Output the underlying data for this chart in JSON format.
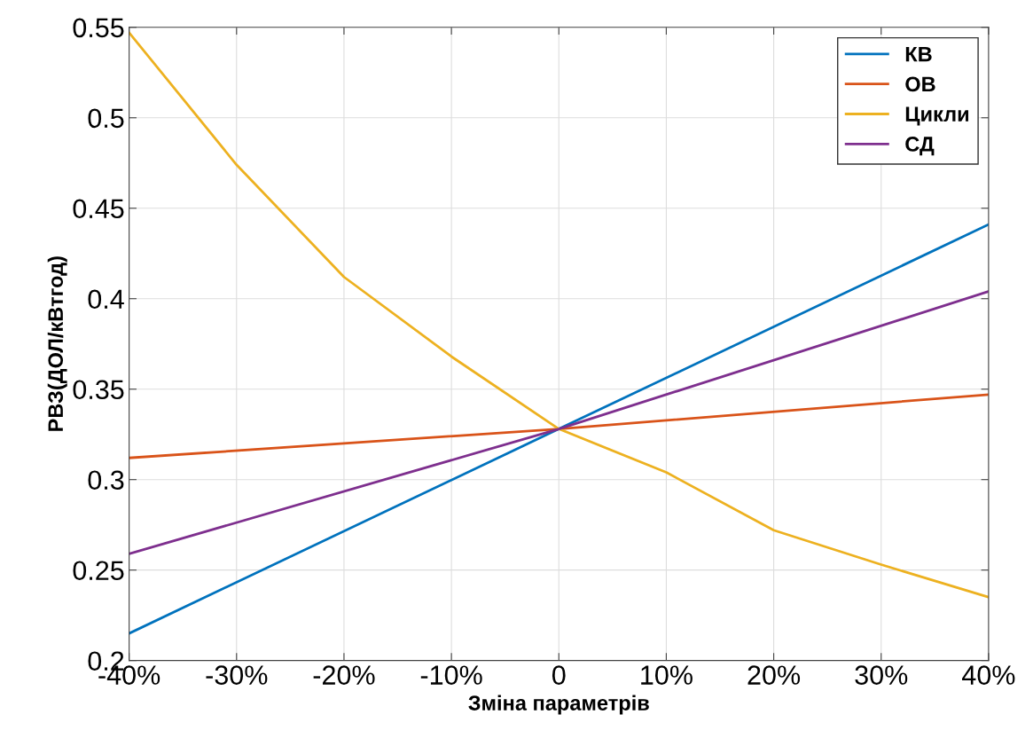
{
  "chart_data": {
    "type": "line",
    "xlabel": "Зміна параметрів",
    "ylabel": "РВЗ(ДОЛ/кВтгод)",
    "x": [
      -40,
      -30,
      -20,
      -10,
      0,
      10,
      20,
      30,
      40
    ],
    "series": [
      {
        "name": "КВ",
        "color": "#0072bd",
        "x": [
          -40,
          0,
          40
        ],
        "values": [
          0.215,
          0.328,
          0.441
        ]
      },
      {
        "name": "ОВ",
        "color": "#d95319",
        "x": [
          -40,
          0,
          40
        ],
        "values": [
          0.312,
          0.328,
          0.347
        ]
      },
      {
        "name": "Цикли",
        "color": "#edb120",
        "values": [
          0.547,
          0.474,
          0.412,
          0.368,
          0.328,
          0.304,
          0.272,
          0.253,
          0.235
        ]
      },
      {
        "name": "СД",
        "color": "#7e2f8e",
        "x": [
          -40,
          0,
          40
        ],
        "values": [
          0.259,
          0.328,
          0.404
        ]
      }
    ],
    "xlim": [
      -40,
      40
    ],
    "xticks": [
      {
        "value": -40,
        "label": "-40%"
      },
      {
        "value": -30,
        "label": "-30%"
      },
      {
        "value": -20,
        "label": "-20%"
      },
      {
        "value": -10,
        "label": "-10%"
      },
      0,
      {
        "value": 10,
        "label": "10%"
      },
      {
        "value": 20,
        "label": "20%"
      },
      {
        "value": 30,
        "label": "30%"
      },
      {
        "value": 40,
        "label": "40%"
      }
    ],
    "ylim": [
      0.2,
      0.55
    ],
    "yticks": [
      0.2,
      0.25,
      0.3,
      0.35,
      0.4,
      0.45,
      0.5,
      0.55
    ],
    "grid": true,
    "legend": "top right",
    "marker": "none",
    "line_style": "solid"
  }
}
